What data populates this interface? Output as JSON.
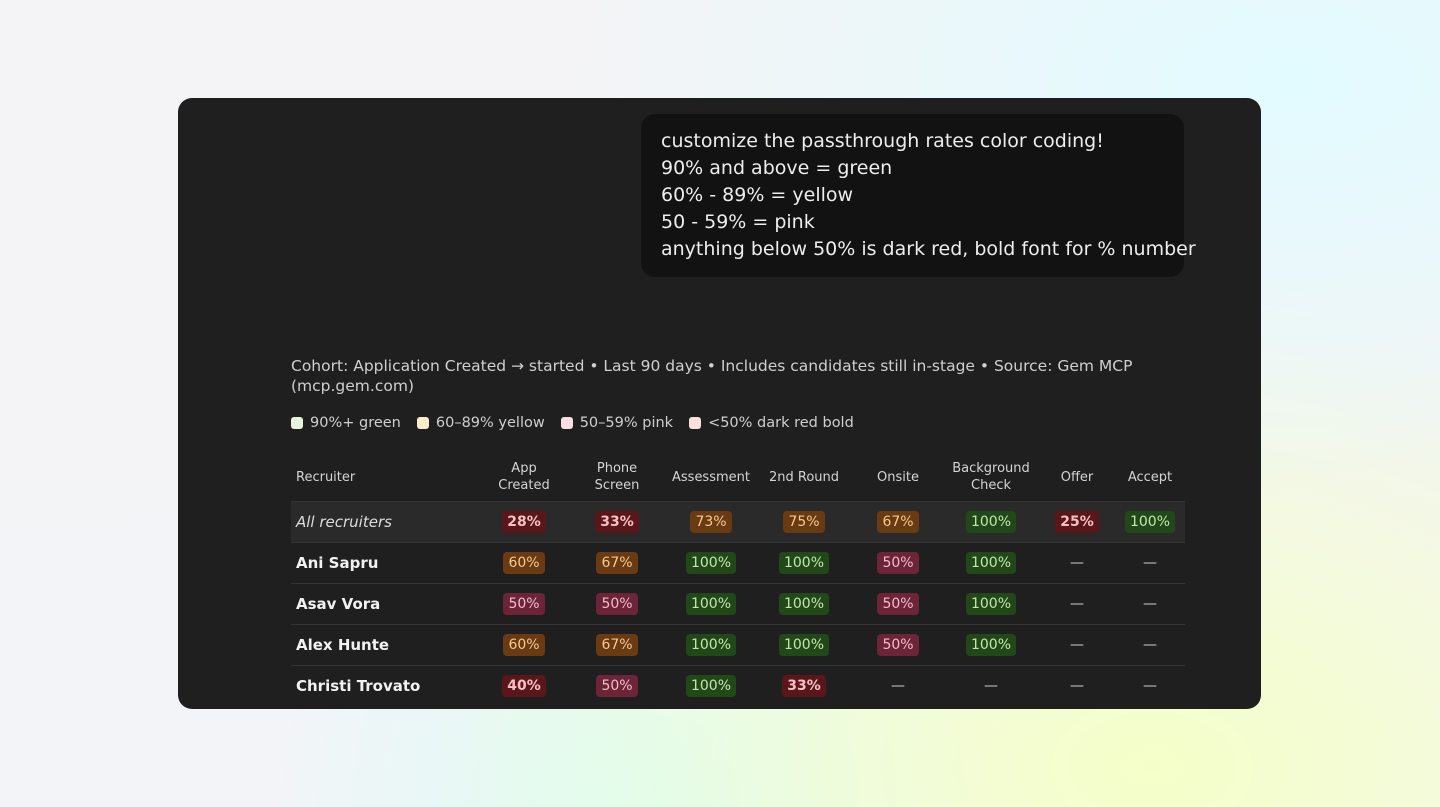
{
  "message": {
    "lines": [
      "customize the passthrough rates color coding!",
      "90% and above = green",
      "60% - 89% = yellow",
      "50 - 59% = pink",
      "anything below 50% is dark red, bold font for % number"
    ]
  },
  "cohort": "Cohort: Application Created → started • Last 90 days • Includes candidates still in-stage • Source: Gem MCP (mcp.gem.com)",
  "tones": {
    "green": {
      "bg": "#22481a",
      "fg": "#bfe8a8",
      "swatch": "#e6f4dc",
      "bold": false
    },
    "yellow": {
      "bg": "#6a3a12",
      "fg": "#f6c98e",
      "swatch": "#fbeccc",
      "bold": false
    },
    "pink": {
      "bg": "#6c2439",
      "fg": "#f5bccb",
      "swatch": "#fbdde4",
      "bold": false
    },
    "red": {
      "bg": "#5a171b",
      "fg": "#f7c0c0",
      "swatch": "#fbe0e0",
      "bold": true
    }
  },
  "legend": [
    {
      "text": "90%+ green",
      "tone": "green"
    },
    {
      "text": "60–89% yellow",
      "tone": "yellow"
    },
    {
      "text": "50–59% pink",
      "tone": "pink"
    },
    {
      "text": "<50% dark red bold",
      "tone": "red"
    }
  ],
  "table": {
    "headers": [
      [
        "Recruiter"
      ],
      [
        "App",
        "Created"
      ],
      [
        "Phone",
        "Screen"
      ],
      [
        "Assessment"
      ],
      [
        "2nd Round"
      ],
      [
        "Onsite"
      ],
      [
        "Background",
        "Check"
      ],
      [
        "Offer"
      ],
      [
        "Accept"
      ]
    ],
    "rows": [
      {
        "name": "All recruiters",
        "summary": true,
        "cells": [
          {
            "text": "28%",
            "tone": "red"
          },
          {
            "text": "33%",
            "tone": "red"
          },
          {
            "text": "73%",
            "tone": "yellow"
          },
          {
            "text": "75%",
            "tone": "yellow"
          },
          {
            "text": "67%",
            "tone": "yellow"
          },
          {
            "text": "100%",
            "tone": "green"
          },
          {
            "text": "25%",
            "tone": "red"
          },
          {
            "text": "100%",
            "tone": "green"
          }
        ]
      },
      {
        "name": "Ani Sapru",
        "summary": false,
        "cells": [
          {
            "text": "60%",
            "tone": "yellow"
          },
          {
            "text": "67%",
            "tone": "yellow"
          },
          {
            "text": "100%",
            "tone": "green"
          },
          {
            "text": "100%",
            "tone": "green"
          },
          {
            "text": "50%",
            "tone": "pink"
          },
          {
            "text": "100%",
            "tone": "green"
          },
          {
            "text": "—"
          },
          {
            "text": "—"
          }
        ]
      },
      {
        "name": "Asav Vora",
        "summary": false,
        "cells": [
          {
            "text": "50%",
            "tone": "pink"
          },
          {
            "text": "50%",
            "tone": "pink"
          },
          {
            "text": "100%",
            "tone": "green"
          },
          {
            "text": "100%",
            "tone": "green"
          },
          {
            "text": "50%",
            "tone": "pink"
          },
          {
            "text": "100%",
            "tone": "green"
          },
          {
            "text": "—"
          },
          {
            "text": "—"
          }
        ]
      },
      {
        "name": "Alex Hunte",
        "summary": false,
        "cells": [
          {
            "text": "60%",
            "tone": "yellow"
          },
          {
            "text": "67%",
            "tone": "yellow"
          },
          {
            "text": "100%",
            "tone": "green"
          },
          {
            "text": "100%",
            "tone": "green"
          },
          {
            "text": "50%",
            "tone": "pink"
          },
          {
            "text": "100%",
            "tone": "green"
          },
          {
            "text": "—"
          },
          {
            "text": "—"
          }
        ]
      },
      {
        "name": "Christi Trovato",
        "summary": false,
        "cells": [
          {
            "text": "40%",
            "tone": "red"
          },
          {
            "text": "50%",
            "tone": "pink"
          },
          {
            "text": "100%",
            "tone": "green"
          },
          {
            "text": "33%",
            "tone": "red"
          },
          {
            "text": "—"
          },
          {
            "text": "—"
          },
          {
            "text": "—"
          },
          {
            "text": "—"
          }
        ]
      }
    ]
  }
}
